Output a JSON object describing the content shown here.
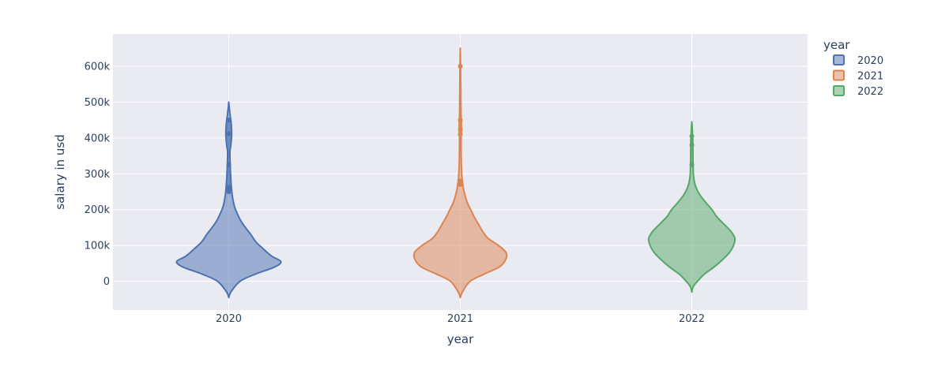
{
  "chart_data": {
    "type": "violin",
    "xlabel": "year",
    "ylabel": "salary in usd",
    "categories": [
      "2020",
      "2021",
      "2022"
    ],
    "y_ticks": [
      0,
      100000,
      200000,
      300000,
      400000,
      500000,
      600000
    ],
    "y_tick_labels": [
      "0",
      "100k",
      "200k",
      "300k",
      "400k",
      "500k",
      "600k"
    ],
    "ylim": [
      -80000,
      690000
    ],
    "grid": true,
    "legend": {
      "title": "year",
      "position": "top-right",
      "entries": [
        "2020",
        "2021",
        "2022"
      ]
    },
    "colors": {
      "2020": "#4c72b0",
      "2021": "#dd8452",
      "2022": "#55a868",
      "plot_bg": "#eaeaf2"
    },
    "series": [
      {
        "name": "2020",
        "color": "#4c72b0",
        "range": [
          -45000,
          500000
        ],
        "density": [
          [
            -45000,
            0
          ],
          [
            -30000,
            0.03
          ],
          [
            0,
            0.16
          ],
          [
            20000,
            0.38
          ],
          [
            40000,
            0.66
          ],
          [
            55000,
            0.75
          ],
          [
            70000,
            0.62
          ],
          [
            90000,
            0.5
          ],
          [
            110000,
            0.39
          ],
          [
            130000,
            0.32
          ],
          [
            150000,
            0.24
          ],
          [
            170000,
            0.17
          ],
          [
            190000,
            0.12
          ],
          [
            210000,
            0.08
          ],
          [
            240000,
            0.05
          ],
          [
            270000,
            0.035
          ],
          [
            300000,
            0.026
          ],
          [
            330000,
            0.02
          ],
          [
            360000,
            0.016
          ],
          [
            380000,
            0.03
          ],
          [
            410000,
            0.042
          ],
          [
            440000,
            0.035
          ],
          [
            460000,
            0.022
          ],
          [
            480000,
            0.01
          ],
          [
            500000,
            0
          ]
        ],
        "outliers": [
          250000,
          258000,
          262000,
          325000,
          412000,
          450000
        ],
        "box": {
          "q1": 245000,
          "q3": 450000
        }
      },
      {
        "name": "2021",
        "color": "#dd8452",
        "range": [
          -45000,
          650000
        ],
        "density": [
          [
            -45000,
            0
          ],
          [
            -30000,
            0.03
          ],
          [
            0,
            0.14
          ],
          [
            20000,
            0.34
          ],
          [
            40000,
            0.56
          ],
          [
            60000,
            0.65
          ],
          [
            80000,
            0.66
          ],
          [
            100000,
            0.55
          ],
          [
            120000,
            0.4
          ],
          [
            140000,
            0.32
          ],
          [
            160000,
            0.26
          ],
          [
            180000,
            0.2
          ],
          [
            200000,
            0.15
          ],
          [
            220000,
            0.1
          ],
          [
            250000,
            0.055
          ],
          [
            280000,
            0.03
          ],
          [
            310000,
            0.018
          ],
          [
            350000,
            0.013
          ],
          [
            400000,
            0.011
          ],
          [
            430000,
            0.015
          ],
          [
            470000,
            0.01
          ],
          [
            520000,
            0.008
          ],
          [
            560000,
            0.006
          ],
          [
            600000,
            0.004
          ],
          [
            650000,
            0
          ]
        ],
        "outliers": [
          270000,
          280000,
          410000,
          423000,
          450000,
          600000
        ],
        "box": {
          "q1": 410000,
          "q3": 455000
        }
      },
      {
        "name": "2022",
        "color": "#55a868",
        "range": [
          -30000,
          445000
        ],
        "density": [
          [
            -30000,
            0
          ],
          [
            -15000,
            0.02
          ],
          [
            0,
            0.08
          ],
          [
            20000,
            0.18
          ],
          [
            40000,
            0.32
          ],
          [
            60000,
            0.44
          ],
          [
            80000,
            0.54
          ],
          [
            100000,
            0.6
          ],
          [
            120000,
            0.62
          ],
          [
            140000,
            0.56
          ],
          [
            160000,
            0.46
          ],
          [
            180000,
            0.36
          ],
          [
            200000,
            0.29
          ],
          [
            220000,
            0.2
          ],
          [
            240000,
            0.12
          ],
          [
            260000,
            0.065
          ],
          [
            280000,
            0.035
          ],
          [
            300000,
            0.022
          ],
          [
            330000,
            0.018
          ],
          [
            360000,
            0.015
          ],
          [
            390000,
            0.012
          ],
          [
            420000,
            0.008
          ],
          [
            445000,
            0
          ]
        ],
        "outliers": [
          325000,
          380000,
          405000
        ],
        "box": {
          "q1": 330000,
          "q3": 400000
        }
      }
    ]
  }
}
